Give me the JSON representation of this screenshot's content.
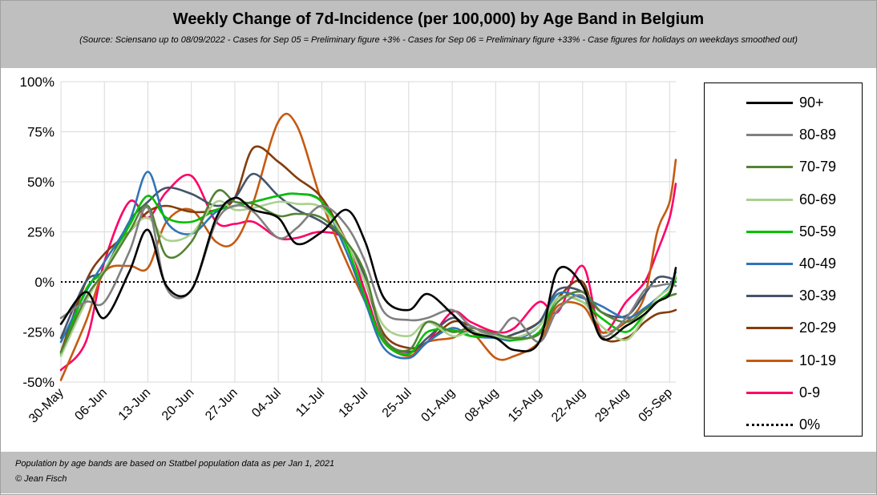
{
  "header": {
    "title": "Weekly Change of 7d-Incidence (per 100,000) by Age Band in Belgium",
    "subtitle": "(Source: Sciensano up to 08/09/2022 - Cases for Sep 05 = Preliminary figure +3% - Cases for Sep 06 = Preliminary figure +33% - Case figures for holidays on weekdays smoothed out)"
  },
  "footer": {
    "line1": "Population by age bands are based on Statbel population data as per Jan 1, 2021",
    "line2": "© Jean Fisch"
  },
  "chart_data": {
    "type": "line",
    "title": "Weekly Change of 7d-Incidence (per 100,000) by Age Band in Belgium",
    "xlabel": "",
    "ylabel": "",
    "ylim": [
      -0.5,
      1.0
    ],
    "yticks": [
      -0.5,
      -0.25,
      0,
      0.25,
      0.5,
      0.75,
      1.0
    ],
    "ytick_labels": [
      "-50%",
      "-25%",
      "0%",
      "25%",
      "50%",
      "75%",
      "100%"
    ],
    "xlim": [
      0,
      99
    ],
    "xticks": [
      0,
      7,
      14,
      21,
      28,
      35,
      42,
      49,
      56,
      63,
      70,
      77,
      84,
      91,
      98
    ],
    "xtick_labels": [
      "30-May",
      "06-Jun",
      "13-Jun",
      "20-Jun",
      "27-Jun",
      "04-Jul",
      "11-Jul",
      "18-Jul",
      "25-Jul",
      "01-Aug",
      "08-Aug",
      "15-Aug",
      "22-Aug",
      "29-Aug",
      "05-Sep"
    ],
    "x": [
      0,
      4,
      7,
      11,
      14,
      17,
      21,
      25,
      28,
      31,
      35,
      38,
      42,
      46,
      49,
      52,
      56,
      59,
      63,
      66,
      70,
      73,
      77,
      80,
      84,
      87,
      91,
      94,
      96,
      98,
      99
    ],
    "grid": true,
    "legend_position": "right",
    "series": [
      {
        "name": "90+",
        "color": "#000000",
        "values": [
          -0.21,
          -0.05,
          -0.18,
          0.05,
          0.26,
          -0.02,
          -0.04,
          0.32,
          0.42,
          0.36,
          0.32,
          0.19,
          0.25,
          0.36,
          0.2,
          -0.08,
          -0.14,
          -0.06,
          -0.16,
          -0.25,
          -0.28,
          -0.34,
          -0.3,
          0.06,
          -0.02,
          -0.28,
          -0.22,
          -0.16,
          -0.1,
          -0.06,
          0.07
        ]
      },
      {
        "name": "80-89",
        "color": "#808080",
        "values": [
          -0.18,
          -0.1,
          -0.1,
          0.15,
          0.37,
          -0.03,
          -0.04,
          0.3,
          0.38,
          0.35,
          0.22,
          0.27,
          0.38,
          0.28,
          0.1,
          -0.15,
          -0.19,
          -0.18,
          -0.14,
          -0.22,
          -0.26,
          -0.18,
          -0.3,
          -0.14,
          -0.07,
          -0.27,
          -0.18,
          -0.04,
          -0.02,
          -0.01,
          -0.02
        ]
      },
      {
        "name": "70-79",
        "color": "#548235",
        "values": [
          -0.35,
          -0.08,
          0.05,
          0.25,
          0.38,
          0.13,
          0.2,
          0.45,
          0.4,
          0.39,
          0.33,
          0.34,
          0.32,
          0.2,
          0.04,
          -0.28,
          -0.34,
          -0.2,
          -0.25,
          -0.23,
          -0.26,
          -0.28,
          -0.26,
          -0.1,
          -0.05,
          -0.15,
          -0.2,
          -0.14,
          -0.1,
          -0.07,
          -0.06
        ]
      },
      {
        "name": "60-69",
        "color": "#a9d18e",
        "values": [
          -0.37,
          -0.1,
          0.06,
          0.25,
          0.32,
          0.21,
          0.24,
          0.4,
          0.36,
          0.37,
          0.4,
          0.39,
          0.37,
          0.2,
          0.0,
          -0.22,
          -0.27,
          -0.2,
          -0.27,
          -0.25,
          -0.27,
          -0.28,
          -0.22,
          -0.08,
          -0.1,
          -0.22,
          -0.29,
          -0.17,
          -0.08,
          -0.03,
          0.03
        ]
      },
      {
        "name": "50-59",
        "color": "#00c000",
        "values": [
          -0.36,
          -0.04,
          0.06,
          0.28,
          0.43,
          0.32,
          0.3,
          0.36,
          0.38,
          0.4,
          0.43,
          0.44,
          0.4,
          0.18,
          -0.08,
          -0.3,
          -0.36,
          -0.25,
          -0.24,
          -0.27,
          -0.27,
          -0.29,
          -0.25,
          -0.08,
          -0.1,
          -0.18,
          -0.25,
          -0.16,
          -0.1,
          -0.05,
          0.02
        ]
      },
      {
        "name": "40-49",
        "color": "#2e75b6",
        "values": [
          -0.3,
          -0.05,
          0.1,
          0.3,
          0.55,
          0.3,
          0.24,
          0.35,
          0.38,
          0.4,
          0.43,
          0.44,
          0.4,
          0.15,
          -0.1,
          -0.33,
          -0.38,
          -0.3,
          -0.23,
          -0.27,
          -0.28,
          -0.29,
          -0.22,
          -0.06,
          -0.08,
          -0.12,
          -0.18,
          -0.13,
          -0.08,
          -0.02,
          0.05
        ]
      },
      {
        "name": "30-39",
        "color": "#44546a",
        "values": [
          -0.28,
          0.0,
          0.06,
          0.3,
          0.4,
          0.47,
          0.44,
          0.38,
          0.42,
          0.54,
          0.43,
          0.36,
          0.3,
          0.2,
          0.02,
          -0.28,
          -0.35,
          -0.28,
          -0.18,
          -0.24,
          -0.28,
          -0.26,
          -0.2,
          -0.04,
          -0.05,
          -0.15,
          -0.17,
          -0.06,
          0.02,
          0.02,
          0.0
        ]
      },
      {
        "name": "20-29",
        "color": "#843c0c",
        "values": [
          -0.35,
          0.0,
          0.14,
          0.25,
          0.35,
          0.38,
          0.35,
          0.36,
          0.42,
          0.67,
          0.6,
          0.52,
          0.42,
          0.2,
          0.0,
          -0.26,
          -0.33,
          -0.3,
          -0.2,
          -0.22,
          -0.28,
          -0.26,
          -0.2,
          -0.08,
          0.0,
          -0.27,
          -0.28,
          -0.2,
          -0.16,
          -0.15,
          -0.14
        ]
      },
      {
        "name": "10-19",
        "color": "#c55a11",
        "values": [
          -0.49,
          -0.2,
          0.05,
          0.08,
          0.07,
          0.3,
          0.36,
          0.2,
          0.2,
          0.4,
          0.8,
          0.78,
          0.4,
          0.1,
          -0.1,
          -0.3,
          -0.37,
          -0.3,
          -0.28,
          -0.25,
          -0.38,
          -0.37,
          -0.3,
          -0.12,
          -0.12,
          -0.25,
          -0.2,
          -0.07,
          0.25,
          0.4,
          0.61
        ]
      },
      {
        "name": "0-9",
        "color": "#ff0066",
        "values": [
          -0.44,
          -0.3,
          0.1,
          0.4,
          0.32,
          0.45,
          0.53,
          0.3,
          0.29,
          0.3,
          0.22,
          0.22,
          0.25,
          0.2,
          -0.05,
          -0.3,
          -0.35,
          -0.3,
          -0.15,
          -0.2,
          -0.25,
          -0.23,
          -0.1,
          -0.15,
          0.08,
          -0.25,
          -0.1,
          0.0,
          0.15,
          0.32,
          0.49
        ]
      }
    ],
    "reference_line": {
      "name": "0%",
      "value": 0,
      "color": "#000000",
      "style": "dotted"
    }
  }
}
